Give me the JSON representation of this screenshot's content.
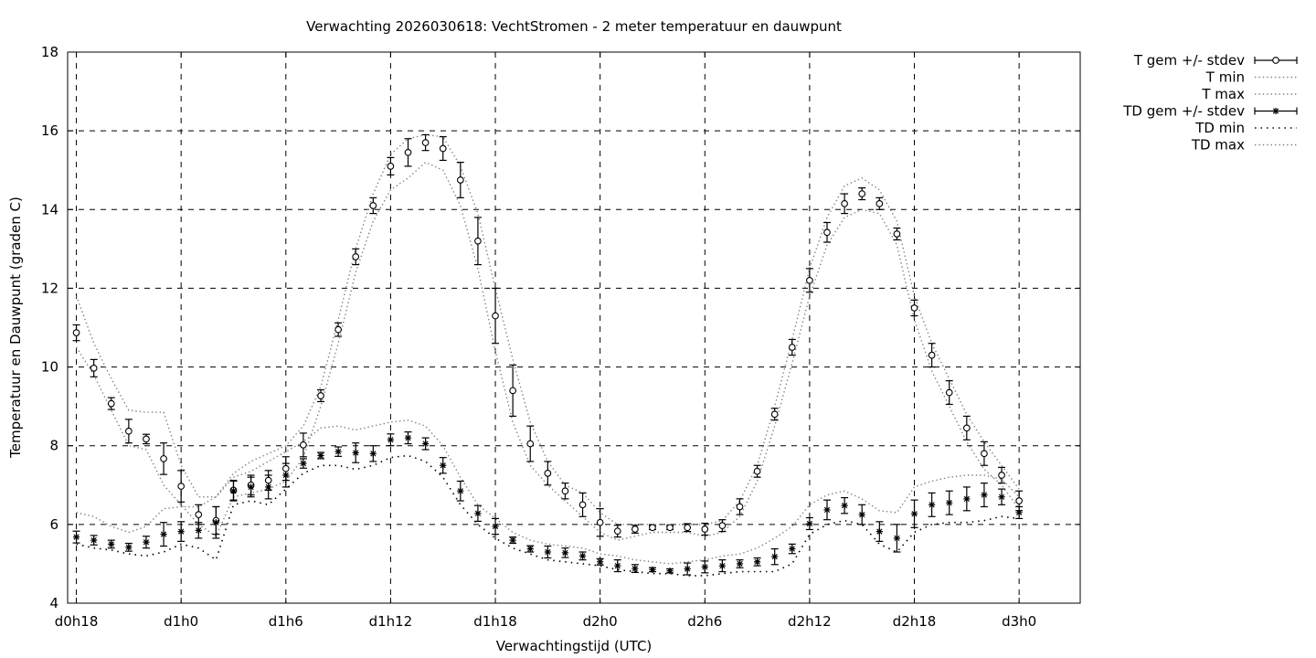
{
  "chart_data": {
    "type": "line",
    "title": "Verwachting 2026030618: VechtStromen - 2 meter temperatuur en dauwpunt",
    "xlabel": "Verwachtingstijd (UTC)",
    "ylabel": "Temperatuur en Dauwpunt (graden C)",
    "xlim": [
      17.5,
      75.5
    ],
    "ylim": [
      4,
      18
    ],
    "yticks": [
      4,
      6,
      8,
      10,
      12,
      14,
      16,
      18
    ],
    "xticks": [
      {
        "value": 18,
        "label": "d0h18"
      },
      {
        "value": 24,
        "label": "d1h0"
      },
      {
        "value": 30,
        "label": "d1h6"
      },
      {
        "value": 36,
        "label": "d1h12"
      },
      {
        "value": 42,
        "label": "d1h18"
      },
      {
        "value": 48,
        "label": "d2h0"
      },
      {
        "value": 54,
        "label": "d2h6"
      },
      {
        "value": 60,
        "label": "d2h12"
      },
      {
        "value": 66,
        "label": "d2h18"
      },
      {
        "value": 72,
        "label": "d3h0"
      }
    ],
    "grid": true,
    "legend_position": "outside-top-right",
    "x": [
      18,
      19,
      20,
      21,
      22,
      23,
      24,
      25,
      26,
      27,
      28,
      29,
      30,
      31,
      32,
      33,
      34,
      35,
      36,
      37,
      38,
      39,
      40,
      41,
      42,
      43,
      44,
      45,
      46,
      47,
      48,
      49,
      50,
      51,
      52,
      53,
      54,
      55,
      56,
      57,
      58,
      59,
      60,
      61,
      62,
      63,
      64,
      65,
      66,
      67,
      68,
      69,
      70,
      71,
      72
    ],
    "series": [
      {
        "name": "T gem +/- stdev",
        "marker": "circle",
        "values": [
          10.87,
          9.97,
          9.07,
          8.37,
          8.17,
          7.67,
          6.97,
          6.25,
          6.1,
          6.87,
          7.0,
          7.12,
          7.42,
          8.02,
          9.27,
          10.95,
          12.8,
          14.1,
          15.1,
          15.45,
          15.7,
          15.55,
          14.75,
          13.2,
          11.3,
          9.4,
          8.05,
          7.3,
          6.85,
          6.5,
          6.05,
          5.83,
          5.88,
          5.92,
          5.92,
          5.92,
          5.88,
          5.97,
          6.45,
          7.35,
          8.8,
          10.5,
          12.2,
          13.42,
          14.15,
          14.4,
          14.15,
          13.38,
          11.5,
          10.3,
          9.35,
          8.45,
          7.8,
          7.25,
          6.6
        ],
        "stdev": [
          0.2,
          0.22,
          0.15,
          0.3,
          0.12,
          0.4,
          0.4,
          0.25,
          0.35,
          0.25,
          0.25,
          0.25,
          0.3,
          0.3,
          0.15,
          0.17,
          0.2,
          0.2,
          0.22,
          0.35,
          0.2,
          0.3,
          0.45,
          0.6,
          0.7,
          0.65,
          0.45,
          0.3,
          0.2,
          0.3,
          0.35,
          0.15,
          0.1,
          0.05,
          0.05,
          0.1,
          0.15,
          0.15,
          0.2,
          0.15,
          0.15,
          0.2,
          0.3,
          0.25,
          0.25,
          0.15,
          0.15,
          0.15,
          0.2,
          0.3,
          0.3,
          0.3,
          0.3,
          0.2,
          0.25
        ]
      },
      {
        "name": "T min",
        "style": "dots-grey",
        "values": [
          10.5,
          9.8,
          8.9,
          8.0,
          7.9,
          7.0,
          6.5,
          6.0,
          5.7,
          6.7,
          6.8,
          6.9,
          7.1,
          7.7,
          9.0,
          10.6,
          12.4,
          13.7,
          14.5,
          14.8,
          15.2,
          15.0,
          14.1,
          12.5,
          10.4,
          8.6,
          7.5,
          7.0,
          6.6,
          6.2,
          5.8,
          5.6,
          5.7,
          5.8,
          5.8,
          5.8,
          5.7,
          5.8,
          6.2,
          7.1,
          8.5,
          10.1,
          11.8,
          13.1,
          13.8,
          14.0,
          13.9,
          13.1,
          11.2,
          9.9,
          9.0,
          8.1,
          7.4,
          7.0,
          6.4
        ]
      },
      {
        "name": "T max",
        "style": "dots-grey",
        "values": [
          11.8,
          10.6,
          9.7,
          8.9,
          8.85,
          8.85,
          7.5,
          6.7,
          6.7,
          7.3,
          7.6,
          7.8,
          8.0,
          8.5,
          9.5,
          11.2,
          13.0,
          14.4,
          15.4,
          15.8,
          15.9,
          15.85,
          15.1,
          13.9,
          12.0,
          10.2,
          8.6,
          7.6,
          7.0,
          6.8,
          6.3,
          6.0,
          6.0,
          6.0,
          6.0,
          6.0,
          6.0,
          6.1,
          6.6,
          7.5,
          9.0,
          10.7,
          12.5,
          13.8,
          14.6,
          14.8,
          14.5,
          13.7,
          11.8,
          10.6,
          9.7,
          8.8,
          8.1,
          7.5,
          6.9
        ]
      },
      {
        "name": "TD gem +/- stdev",
        "marker": "star",
        "values": [
          5.68,
          5.6,
          5.5,
          5.42,
          5.55,
          5.75,
          5.82,
          5.85,
          6.05,
          6.85,
          6.95,
          6.95,
          7.25,
          7.55,
          7.75,
          7.85,
          7.82,
          7.8,
          8.15,
          8.2,
          8.05,
          7.5,
          6.85,
          6.28,
          5.95,
          5.6,
          5.38,
          5.3,
          5.28,
          5.2,
          5.05,
          4.95,
          4.88,
          4.85,
          4.82,
          4.87,
          4.92,
          4.95,
          5.0,
          5.05,
          5.18,
          5.38,
          6.02,
          6.37,
          6.48,
          6.25,
          5.82,
          5.65,
          6.27,
          6.5,
          6.55,
          6.65,
          6.75,
          6.7,
          6.3
        ],
        "stdev": [
          0.15,
          0.12,
          0.1,
          0.1,
          0.15,
          0.3,
          0.25,
          0.2,
          0.4,
          0.25,
          0.25,
          0.3,
          0.3,
          0.12,
          0.08,
          0.12,
          0.25,
          0.2,
          0.15,
          0.15,
          0.15,
          0.2,
          0.25,
          0.2,
          0.2,
          0.08,
          0.08,
          0.15,
          0.12,
          0.1,
          0.08,
          0.15,
          0.1,
          0.05,
          0.05,
          0.15,
          0.15,
          0.15,
          0.1,
          0.1,
          0.2,
          0.12,
          0.15,
          0.25,
          0.2,
          0.25,
          0.25,
          0.35,
          0.35,
          0.3,
          0.3,
          0.3,
          0.3,
          0.2,
          0.15
        ]
      },
      {
        "name": "TD min",
        "style": "dots-dark",
        "values": [
          5.5,
          5.4,
          5.35,
          5.25,
          5.2,
          5.3,
          5.5,
          5.4,
          5.1,
          6.5,
          6.6,
          6.5,
          6.9,
          7.3,
          7.5,
          7.5,
          7.4,
          7.5,
          7.7,
          7.75,
          7.6,
          7.2,
          6.5,
          6.0,
          5.65,
          5.4,
          5.25,
          5.1,
          5.05,
          5.0,
          4.95,
          4.85,
          4.8,
          4.75,
          4.75,
          4.7,
          4.7,
          4.75,
          4.8,
          4.8,
          4.8,
          5.0,
          5.75,
          6.0,
          6.1,
          6.0,
          5.5,
          5.3,
          5.8,
          6.0,
          6.05,
          6.05,
          6.1,
          6.2,
          6.15
        ]
      },
      {
        "name": "TD max",
        "style": "dots-grey",
        "values": [
          6.3,
          6.2,
          5.95,
          5.8,
          5.95,
          6.4,
          6.45,
          6.45,
          6.7,
          7.2,
          7.35,
          7.6,
          7.85,
          8.1,
          8.45,
          8.5,
          8.4,
          8.5,
          8.6,
          8.65,
          8.5,
          8.0,
          7.2,
          6.5,
          6.15,
          5.8,
          5.6,
          5.5,
          5.45,
          5.4,
          5.25,
          5.2,
          5.1,
          5.05,
          5.0,
          5.05,
          5.1,
          5.2,
          5.25,
          5.4,
          5.65,
          5.95,
          6.5,
          6.75,
          6.85,
          6.65,
          6.35,
          6.3,
          6.95,
          7.1,
          7.2,
          7.25,
          7.25,
          7.15,
          6.7
        ]
      }
    ]
  }
}
